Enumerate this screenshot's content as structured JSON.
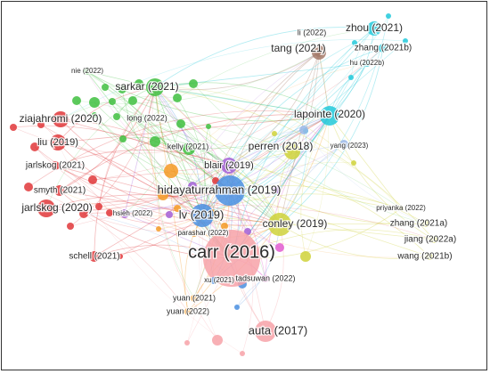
{
  "network": {
    "cluster_colors": {
      "red": "#e0373a",
      "green": "#3fbf3f",
      "blue": "#4a8fe0",
      "yellow": "#cfd23a",
      "purple": "#a35fd6",
      "cyan": "#22c9da",
      "brown": "#a57a6a",
      "orange": "#f59a25",
      "pink": "#f7a2a8",
      "lightblue": "#9bb8e8",
      "magenta": "#e25bd0"
    },
    "labels": [
      {
        "id": "carr",
        "text": "carr (2016)"
      },
      {
        "id": "hidayaturrahman",
        "text": "hidayaturrahman (2019)"
      },
      {
        "id": "lv",
        "text": "lv (2019)"
      },
      {
        "id": "conley",
        "text": "conley (2019)"
      },
      {
        "id": "lapointe",
        "text": "lapointe (2020)"
      },
      {
        "id": "perren",
        "text": "perren (2018)"
      },
      {
        "id": "blair",
        "text": "blair (2019)"
      },
      {
        "id": "kelly",
        "text": "kelly (2021)"
      },
      {
        "id": "sarkar",
        "text": "sarkar (2021)"
      },
      {
        "id": "long",
        "text": "long (2022)"
      },
      {
        "id": "nie",
        "text": "nie (2022)"
      },
      {
        "id": "ziajahromi",
        "text": "ziajahromi (2020)"
      },
      {
        "id": "liu",
        "text": "liu (2019)"
      },
      {
        "id": "jarlskog2021",
        "text": "jarlskog (2021)"
      },
      {
        "id": "smyth",
        "text": "smyth (2021)"
      },
      {
        "id": "jarlskog2020",
        "text": "jarlskog (2020)"
      },
      {
        "id": "hsieh",
        "text": "hsieh (2022)"
      },
      {
        "id": "parashar",
        "text": "parashar (2022)"
      },
      {
        "id": "schell",
        "text": "schell (2021)"
      },
      {
        "id": "xu",
        "text": "xu (2021)"
      },
      {
        "id": "tadsuwan",
        "text": "tadsuwan (2022)"
      },
      {
        "id": "yuan2021",
        "text": "yuan (2021)"
      },
      {
        "id": "yuan2022",
        "text": "yuan (2022)"
      },
      {
        "id": "auta",
        "text": "auta (2017)"
      },
      {
        "id": "li",
        "text": "li (2022)"
      },
      {
        "id": "tang",
        "text": "tang (2021)"
      },
      {
        "id": "zhou",
        "text": "zhou (2021)"
      },
      {
        "id": "zhang2021b",
        "text": "zhang (2021b)"
      },
      {
        "id": "hu",
        "text": "hu (2022b)"
      },
      {
        "id": "yang",
        "text": "yang (2023)"
      },
      {
        "id": "priyanka",
        "text": "priyanka (2022)"
      },
      {
        "id": "zhang2021a",
        "text": "zhang (2021a)"
      },
      {
        "id": "jiang",
        "text": "jiang (2022a)"
      },
      {
        "id": "wang",
        "text": "wang (2021b)"
      }
    ]
  }
}
